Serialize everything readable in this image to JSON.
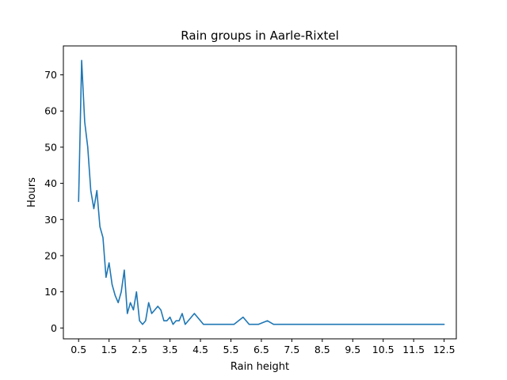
{
  "chart_data": {
    "type": "line",
    "title": "Rain groups in Aarle-Rixtel",
    "xlabel": "Rain height",
    "ylabel": "Hours",
    "xlim": [
      0.0,
      12.9
    ],
    "ylim": [
      -3,
      78
    ],
    "xticks": [
      0.5,
      1.5,
      2.5,
      3.5,
      4.5,
      5.5,
      6.5,
      7.5,
      8.5,
      9.5,
      10.5,
      11.5,
      12.5
    ],
    "xtick_labels": [
      "0.5",
      "1.5",
      "2.5",
      "3.5",
      "4.5",
      "5.5",
      "6.5",
      "7.5",
      "8.5",
      "9.5",
      "10.5",
      "11.5",
      "12.5"
    ],
    "yticks": [
      0,
      10,
      20,
      30,
      40,
      50,
      60,
      70
    ],
    "ytick_labels": [
      "0",
      "10",
      "20",
      "30",
      "40",
      "50",
      "60",
      "70"
    ],
    "grid": false,
    "series": [
      {
        "color": "#1f77b4",
        "x": [
          0.5,
          0.6,
          0.7,
          0.8,
          0.9,
          1.0,
          1.1,
          1.2,
          1.3,
          1.4,
          1.5,
          1.6,
          1.7,
          1.8,
          1.9,
          2.0,
          2.1,
          2.2,
          2.3,
          2.4,
          2.5,
          2.6,
          2.7,
          2.8,
          2.9,
          3.0,
          3.1,
          3.2,
          3.3,
          3.4,
          3.5,
          3.6,
          3.7,
          3.8,
          3.9,
          4.0,
          4.3,
          4.6,
          5.6,
          5.9,
          6.1,
          6.4,
          6.7,
          6.9,
          12.5
        ],
        "y": [
          35,
          74,
          57,
          50,
          38,
          33,
          38,
          28,
          25,
          14,
          18,
          12,
          9,
          7,
          10,
          16,
          4,
          7,
          5,
          10,
          2,
          1,
          2,
          7,
          4,
          5,
          6,
          5,
          2,
          2,
          3,
          1,
          2,
          2,
          4,
          1,
          4,
          1,
          1,
          3,
          1,
          1,
          2,
          1,
          1
        ]
      }
    ]
  }
}
